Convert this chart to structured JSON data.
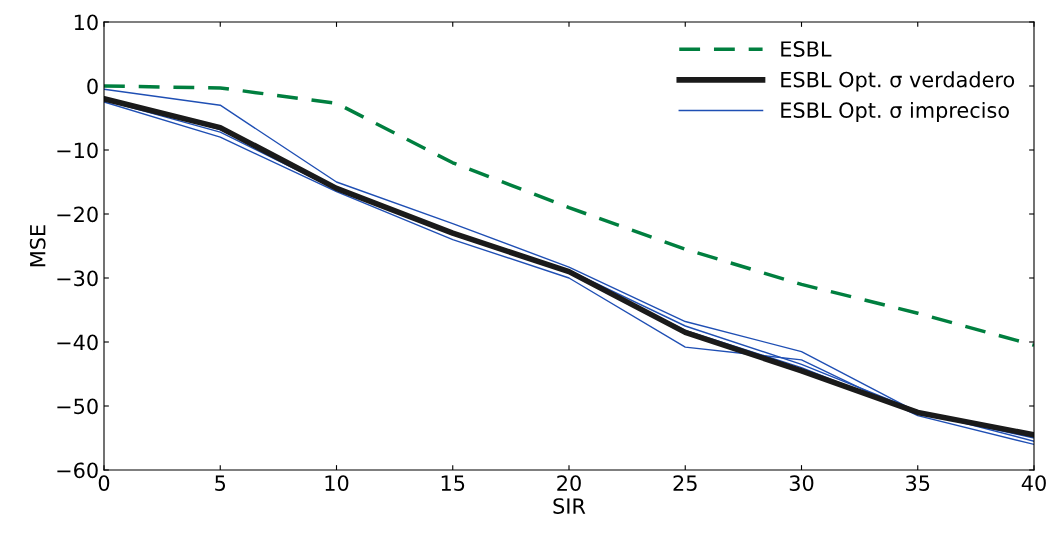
{
  "chart_data": {
    "type": "line",
    "xlabel": "SIR",
    "ylabel": "MSE",
    "x": [
      0,
      5,
      10,
      15,
      20,
      25,
      30,
      35,
      40
    ],
    "xlim": [
      0,
      40
    ],
    "xticks": [
      0,
      5,
      10,
      15,
      20,
      25,
      30,
      35,
      40
    ],
    "ylim": [
      -60,
      10
    ],
    "yticks": [
      -60,
      -50,
      -40,
      -30,
      -20,
      -10,
      0,
      10
    ],
    "grid": false,
    "legend": "top right",
    "marker": "none",
    "series": [
      {
        "name": "ESBL Opt. σ impreciso",
        "color": "#1f4fb4",
        "line_style": "solid",
        "values": [
          -0.5,
          -3,
          -15,
          -21.5,
          -28.3,
          -36.8,
          -41.5,
          -51,
          -55
        ]
      },
      {
        "color": "#1f4fb4",
        "line_style": "solid",
        "values": [
          -2.5,
          -8,
          -16.5,
          -24,
          -30,
          -40.8,
          -42.8,
          -51.5,
          -56
        ]
      },
      {
        "color": "#1f4fb4",
        "line_style": "solid",
        "values": [
          -1.8,
          -6.8,
          -15.8,
          -22.8,
          -28.8,
          -37.5,
          -43.5,
          -50.8,
          -55.5
        ]
      },
      {
        "color": "#1f4fb4",
        "line_style": "solid",
        "values": [
          -2.2,
          -7.2,
          -16.2,
          -23.2,
          -29.2,
          -38.2,
          -44,
          -51.2,
          -54.3
        ]
      },
      {
        "name": "ESBL Opt. σ verdadero",
        "color": "#1a1a1a",
        "line_style": "solid",
        "values": [
          -2,
          -6.5,
          -16,
          -23,
          -29,
          -38.5,
          -44.5,
          -51,
          -54.5
        ]
      },
      {
        "name": "ESBL",
        "color": "#007f3f",
        "line_style": "dashed",
        "values": [
          0,
          -0.3,
          -2.7,
          -12,
          -19,
          -25.5,
          -31,
          -35.5,
          -40.5
        ]
      }
    ]
  }
}
